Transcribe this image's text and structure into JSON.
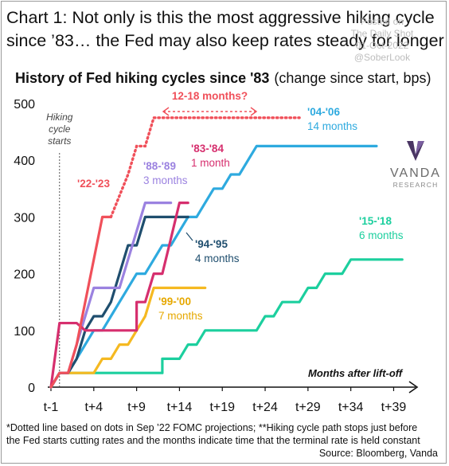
{
  "header": {
    "line1": "Chart 1: Not only is this the most aggressive hiking cycle",
    "line2": "since ’83… the Fed may also keep rates steady for longer"
  },
  "watermark": {
    "line1": "Posted on",
    "line2": "The Daily Shot",
    "line3": "01-Oct-2022",
    "line4": "@SoberLook"
  },
  "logo": {
    "name": "VANDA",
    "sub": "RESEARCH"
  },
  "footnote": {
    "line1": "*Dotted line based on dots in Sep ’22 FOMC projections; **Hiking cycle path stops just before",
    "line2": "the Fed starts cutting rates and the months indicate time that the terminal rate is held constant",
    "source": "Source: Bloomberg, Vanda"
  },
  "chart_data": {
    "type": "line",
    "title": "History of Fed hiking cycles since '83",
    "title_suffix": "(change since start, bps)",
    "xlabel": "Months after lift-off",
    "ylabel": "",
    "x_ticks": [
      -1,
      4,
      9,
      14,
      19,
      24,
      29,
      34,
      39
    ],
    "x_tick_labels": [
      "t-1",
      "t+4",
      "t+9",
      "t+14",
      "t+19",
      "t+24",
      "t+29",
      "t+34",
      "t+39"
    ],
    "y_ticks": [
      0,
      100,
      200,
      300,
      400,
      500
    ],
    "xlim": [
      -1,
      41
    ],
    "ylim": [
      0,
      500
    ],
    "grid": false,
    "start_marker": {
      "x": 0,
      "label_lines": [
        "Hiking",
        "cycle",
        "starts"
      ]
    },
    "series": [
      {
        "name": "'22-'23",
        "color": "#f0505a",
        "label_lines": [
          "'22-'23"
        ],
        "points": [
          [
            -1,
            0
          ],
          [
            0,
            25
          ],
          [
            1,
            25
          ],
          [
            2,
            75
          ],
          [
            3,
            150
          ],
          [
            4,
            225
          ],
          [
            5,
            300
          ],
          [
            6,
            300
          ]
        ],
        "dotted_points": [
          [
            6,
            300
          ],
          [
            8,
            375
          ],
          [
            9,
            425
          ],
          [
            10,
            425
          ],
          [
            11,
            475
          ],
          [
            12,
            475
          ],
          [
            13,
            475
          ],
          [
            14,
            475
          ],
          [
            15,
            475
          ],
          [
            16,
            475
          ],
          [
            17,
            475
          ],
          [
            18,
            475
          ],
          [
            19,
            475
          ],
          [
            20,
            475
          ],
          [
            21,
            475
          ],
          [
            22,
            475
          ],
          [
            23,
            475
          ],
          [
            24,
            475
          ],
          [
            25,
            475
          ],
          [
            26,
            475
          ],
          [
            27,
            475
          ],
          [
            28,
            475
          ]
        ]
      },
      {
        "name": "'83-'84",
        "color": "#d62f6e",
        "label_lines": [
          "'83-'84",
          "1 month"
        ],
        "points": [
          [
            -1,
            0
          ],
          [
            0,
            113
          ],
          [
            1,
            113
          ],
          [
            2,
            113
          ],
          [
            3,
            100
          ],
          [
            4,
            100
          ],
          [
            5,
            100
          ],
          [
            6,
            100
          ],
          [
            7,
            100
          ],
          [
            8,
            100
          ],
          [
            9,
            100
          ],
          [
            9,
            150
          ],
          [
            10,
            150
          ],
          [
            11,
            200
          ],
          [
            12,
            200
          ],
          [
            13,
            262
          ],
          [
            14,
            325
          ],
          [
            15,
            325
          ]
        ]
      },
      {
        "name": "'88-'89",
        "color": "#9b82e0",
        "label_lines": [
          "'88-'89",
          "3 months"
        ],
        "points": [
          [
            -1,
            0
          ],
          [
            0,
            25
          ],
          [
            1,
            25
          ],
          [
            2,
            75
          ],
          [
            3,
            125
          ],
          [
            4,
            175
          ],
          [
            5,
            175
          ],
          [
            6,
            175
          ],
          [
            7,
            175
          ],
          [
            8,
            225
          ],
          [
            9,
            275
          ],
          [
            10,
            325
          ],
          [
            11,
            325
          ],
          [
            12,
            325
          ],
          [
            13,
            325
          ]
        ]
      },
      {
        "name": "'94-'95",
        "color": "#1f4e6e",
        "label_lines": [
          "'94-'95",
          "4 months"
        ],
        "points": [
          [
            -1,
            0
          ],
          [
            0,
            25
          ],
          [
            1,
            25
          ],
          [
            2,
            50
          ],
          [
            3,
            100
          ],
          [
            4,
            125
          ],
          [
            5,
            125
          ],
          [
            6,
            150
          ],
          [
            7,
            200
          ],
          [
            8,
            250
          ],
          [
            9,
            250
          ],
          [
            10,
            300
          ],
          [
            11,
            300
          ],
          [
            12,
            300
          ],
          [
            13,
            300
          ],
          [
            14,
            300
          ],
          [
            15,
            300
          ]
        ]
      },
      {
        "name": "'99-'00",
        "color": "#f5b921",
        "label_lines": [
          "'99-'00",
          "7 months"
        ],
        "points": [
          [
            -1,
            0
          ],
          [
            0,
            25
          ],
          [
            1,
            25
          ],
          [
            2,
            25
          ],
          [
            3,
            25
          ],
          [
            4,
            25
          ],
          [
            5,
            50
          ],
          [
            6,
            50
          ],
          [
            7,
            75
          ],
          [
            8,
            75
          ],
          [
            9,
            100
          ],
          [
            10,
            125
          ],
          [
            11,
            175
          ],
          [
            12,
            175
          ],
          [
            13,
            175
          ],
          [
            14,
            175
          ],
          [
            15,
            175
          ],
          [
            16,
            175
          ],
          [
            17,
            175
          ]
        ]
      },
      {
        "name": "'04-'06",
        "color": "#2eaadf",
        "label_lines": [
          "'04-'06",
          "14 months"
        ],
        "points": [
          [
            -1,
            0
          ],
          [
            0,
            25
          ],
          [
            1,
            25
          ],
          [
            2,
            50
          ],
          [
            3,
            75
          ],
          [
            4,
            100
          ],
          [
            5,
            100
          ],
          [
            6,
            125
          ],
          [
            7,
            150
          ],
          [
            8,
            175
          ],
          [
            9,
            200
          ],
          [
            10,
            200
          ],
          [
            11,
            225
          ],
          [
            12,
            250
          ],
          [
            13,
            250
          ],
          [
            14,
            275
          ],
          [
            15,
            300
          ],
          [
            16,
            300
          ],
          [
            17,
            325
          ],
          [
            18,
            350
          ],
          [
            19,
            350
          ],
          [
            20,
            375
          ],
          [
            21,
            375
          ],
          [
            22,
            400
          ],
          [
            23,
            425
          ],
          [
            24,
            425
          ],
          [
            25,
            425
          ],
          [
            26,
            425
          ],
          [
            27,
            425
          ],
          [
            28,
            425
          ],
          [
            29,
            425
          ],
          [
            30,
            425
          ],
          [
            31,
            425
          ],
          [
            32,
            425
          ],
          [
            33,
            425
          ],
          [
            34,
            425
          ],
          [
            35,
            425
          ],
          [
            36,
            425
          ],
          [
            37,
            425
          ]
        ]
      },
      {
        "name": "'15-'18",
        "color": "#1ccf9e",
        "label_lines": [
          "'15-'18",
          "6 months"
        ],
        "points": [
          [
            -1,
            0
          ],
          [
            0,
            25
          ],
          [
            1,
            25
          ],
          [
            2,
            25
          ],
          [
            3,
            25
          ],
          [
            4,
            25
          ],
          [
            5,
            25
          ],
          [
            6,
            25
          ],
          [
            7,
            25
          ],
          [
            8,
            25
          ],
          [
            9,
            25
          ],
          [
            10,
            25
          ],
          [
            11,
            25
          ],
          [
            12,
            25
          ],
          [
            12,
            50
          ],
          [
            13,
            50
          ],
          [
            14,
            50
          ],
          [
            15,
            75
          ],
          [
            16,
            75
          ],
          [
            17,
            100
          ],
          [
            18,
            100
          ],
          [
            19,
            100
          ],
          [
            20,
            100
          ],
          [
            21,
            100
          ],
          [
            22,
            100
          ],
          [
            23,
            100
          ],
          [
            24,
            125
          ],
          [
            25,
            125
          ],
          [
            26,
            150
          ],
          [
            27,
            150
          ],
          [
            28,
            150
          ],
          [
            29,
            175
          ],
          [
            30,
            175
          ],
          [
            31,
            200
          ],
          [
            32,
            200
          ],
          [
            33,
            200
          ],
          [
            34,
            225
          ],
          [
            35,
            225
          ],
          [
            36,
            225
          ],
          [
            37,
            225
          ],
          [
            38,
            225
          ],
          [
            39,
            225
          ],
          [
            40,
            225
          ]
        ]
      }
    ],
    "annotations": [
      {
        "text": "12-18 months?",
        "color": "#f0505a",
        "type": "double-arrow",
        "x1": 9,
        "x2": 18.5,
        "y": 500
      }
    ]
  }
}
